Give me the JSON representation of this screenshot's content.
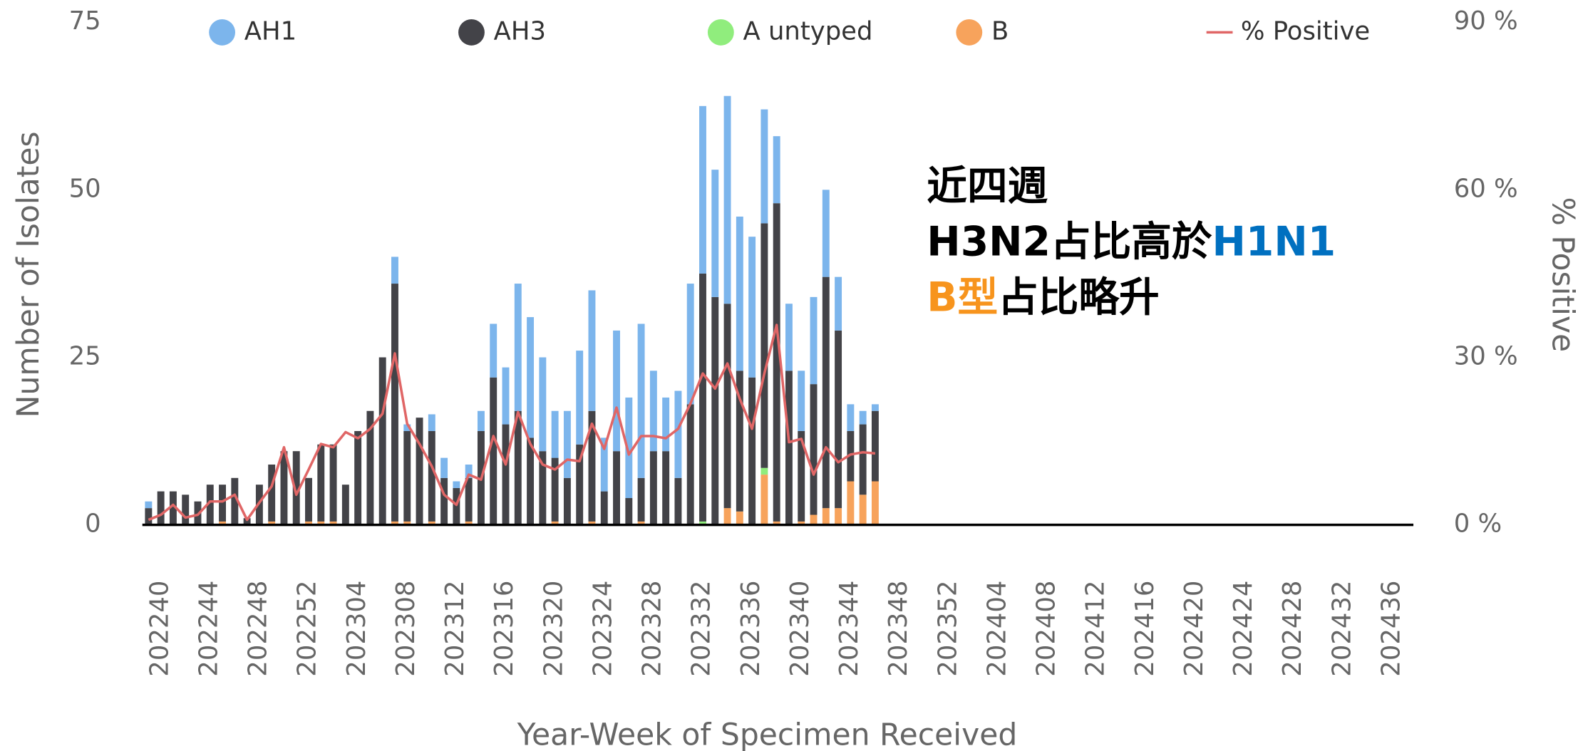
{
  "chart_data": {
    "type": "bar",
    "stacked": true,
    "legend_position": "top",
    "ylabel": "Number of Isolates",
    "y2label": "% Positive",
    "xlabel": "Year-Week of Specimen Received",
    "ylim": [
      0,
      75
    ],
    "yticks": [
      0,
      25,
      50,
      75
    ],
    "y2lim": [
      0,
      90
    ],
    "y2ticks": [
      {
        "value": 0,
        "label": "0 %"
      },
      {
        "value": 30,
        "label": "30 %"
      },
      {
        "value": 60,
        "label": "60 %"
      },
      {
        "value": 90,
        "label": "90 %"
      }
    ],
    "annotation": [
      [
        {
          "text": "近四週",
          "color": "#000000"
        }
      ],
      [
        {
          "text": "H3N2占比高於",
          "color": "#000000"
        },
        {
          "text": "H1N1",
          "color": "#0070c0"
        }
      ],
      [
        {
          "text": "B型",
          "color": "#f7941d"
        },
        {
          "text": "占比略升",
          "color": "#000000"
        }
      ]
    ],
    "categories": [
      "202240",
      null,
      null,
      null,
      "202244",
      null,
      null,
      null,
      "202248",
      null,
      null,
      null,
      "202252",
      null,
      null,
      null,
      "202304",
      null,
      null,
      null,
      "202308",
      null,
      null,
      null,
      "202312",
      null,
      null,
      null,
      "202316",
      null,
      null,
      null,
      "202320",
      null,
      null,
      null,
      "202324",
      null,
      null,
      null,
      "202328",
      null,
      null,
      null,
      "202332",
      null,
      null,
      null,
      "202336",
      null,
      null,
      null,
      "202340",
      null,
      null,
      null,
      "202344",
      null,
      null,
      null,
      "202348",
      null,
      null,
      null,
      "202352",
      null,
      null,
      null,
      "202404",
      null,
      null,
      null,
      "202408",
      null,
      null,
      null,
      "202412",
      null,
      null,
      null,
      "202416",
      null,
      null,
      null,
      "202420",
      null,
      null,
      null,
      "202424",
      null,
      null,
      null,
      "202428",
      null,
      null,
      null,
      "202432",
      null,
      null,
      null,
      "202436",
      null,
      null,
      null
    ],
    "series": [
      {
        "name": "AH1",
        "color": "#7cb5ec",
        "values": [
          1,
          0,
          0,
          0,
          0,
          0,
          0,
          0,
          0,
          0,
          0,
          0,
          0,
          0,
          0,
          0,
          0,
          0,
          0,
          0,
          4,
          1,
          0,
          2.5,
          3,
          1,
          2,
          3,
          8,
          8.5,
          19,
          18,
          14,
          7,
          10,
          14,
          18,
          8,
          18,
          15,
          23,
          12,
          8,
          13,
          18,
          25,
          19,
          31,
          23,
          21,
          17,
          10,
          10,
          9,
          13,
          13,
          8,
          4,
          2,
          1,
          null,
          null,
          null,
          null,
          null,
          null,
          null,
          null,
          null,
          null,
          null,
          null,
          null,
          null,
          null,
          null,
          null,
          null,
          null,
          null,
          null,
          null,
          null,
          null,
          null,
          null,
          null,
          null,
          null,
          null,
          null,
          null,
          null,
          null,
          null,
          null,
          null,
          null,
          null,
          null,
          null,
          null,
          null,
          null
        ]
      },
      {
        "name": "AH3",
        "color": "#434348",
        "values": [
          2.5,
          5,
          5,
          4.5,
          3.5,
          6,
          5.5,
          7,
          1,
          6,
          8.5,
          11,
          11,
          6.5,
          11.5,
          11.5,
          6,
          14,
          17,
          25,
          35.5,
          13.5,
          16,
          13.5,
          7,
          5.5,
          6.5,
          14,
          22,
          15,
          17,
          13,
          11,
          9.5,
          7,
          12,
          16.5,
          5,
          11,
          4,
          6.5,
          11,
          11,
          7,
          18,
          37,
          34,
          30.5,
          21,
          22,
          36.5,
          47.5,
          23,
          13.5,
          19.5,
          34.5,
          26.5,
          7.5,
          10.5,
          10.5,
          null,
          null,
          null,
          null,
          null,
          null,
          null,
          null,
          null,
          null,
          null,
          null,
          null,
          null,
          null,
          null,
          null,
          null,
          null,
          null,
          null,
          null,
          null,
          null,
          null,
          null,
          null,
          null,
          null,
          null,
          null,
          null,
          null,
          null,
          null,
          null,
          null,
          null,
          null,
          null,
          null,
          null,
          null,
          null
        ]
      },
      {
        "name": "A untyped",
        "color": "#90ed7d",
        "values": [
          0,
          0,
          0,
          0,
          0,
          0,
          0,
          0,
          0,
          0,
          0,
          0,
          0,
          0,
          0,
          0,
          0,
          0,
          0,
          0,
          0,
          0,
          0,
          0,
          0,
          0,
          0,
          0,
          0,
          0,
          0,
          0,
          0,
          0,
          0,
          0,
          0,
          0,
          0,
          0,
          0,
          0,
          0,
          0,
          0,
          0.5,
          0,
          0,
          0,
          0,
          1,
          0,
          0,
          0,
          0,
          0,
          0,
          0,
          0,
          0,
          null,
          null,
          null,
          null,
          null,
          null,
          null,
          null,
          null,
          null,
          null,
          null,
          null,
          null,
          null,
          null,
          null,
          null,
          null,
          null,
          null,
          null,
          null,
          null,
          null,
          null,
          null,
          null,
          null,
          null,
          null,
          null,
          null,
          null,
          null,
          null,
          null,
          null,
          null,
          null,
          null,
          null,
          null,
          null
        ]
      },
      {
        "name": "B",
        "color": "#f7a35c",
        "values": [
          0,
          0,
          0,
          0,
          0,
          0,
          0.5,
          0,
          0,
          0,
          0.5,
          0,
          0,
          0.5,
          0.5,
          0.5,
          0,
          0,
          0,
          0,
          0.5,
          0.5,
          0,
          0.5,
          0,
          0,
          0.5,
          0,
          0,
          0,
          0,
          0,
          0,
          0.5,
          0,
          0,
          0.5,
          0,
          0,
          0,
          0.5,
          0,
          0,
          0,
          0,
          0,
          0,
          2.5,
          2,
          0,
          7.5,
          0.5,
          0,
          0.5,
          1.5,
          2.5,
          2.5,
          6.5,
          4.5,
          6.5,
          null,
          null,
          null,
          null,
          null,
          null,
          null,
          null,
          null,
          null,
          null,
          null,
          null,
          null,
          null,
          null,
          null,
          null,
          null,
          null,
          null,
          null,
          null,
          null,
          null,
          null,
          null,
          null,
          null,
          null,
          null,
          null,
          null,
          null,
          null,
          null,
          null,
          null,
          null,
          null,
          null,
          null,
          null,
          null
        ]
      },
      {
        "name": "% Positive",
        "type": "line",
        "axis": "y2",
        "color": "#e06666",
        "values": [
          0.9,
          1.8,
          3.6,
          1.3,
          1.8,
          4.2,
          4.2,
          5.4,
          0.9,
          4.0,
          6.9,
          13.9,
          5.4,
          9.9,
          14.5,
          13.9,
          16.6,
          15.5,
          17.2,
          19.9,
          30.7,
          18.1,
          14.5,
          10.5,
          5.4,
          3.6,
          9.0,
          8.1,
          15.9,
          10.8,
          20.2,
          14.5,
          10.8,
          9.9,
          11.7,
          11.4,
          18.1,
          13.6,
          21,
          12.6,
          15.9,
          15.9,
          15.5,
          17.2,
          21.7,
          27.1,
          24.4,
          28.9,
          22.6,
          17.2,
          27.1,
          35.8,
          14.8,
          15.4,
          9.0,
          13.9,
          11.2,
          12.6,
          13,
          12.8,
          null,
          null,
          null,
          null,
          null,
          null,
          null,
          null,
          null,
          null,
          null,
          null,
          null,
          null,
          null,
          null,
          null,
          null,
          null,
          null,
          null,
          null,
          null,
          null,
          null,
          null,
          null,
          null,
          null,
          null,
          null,
          null,
          null,
          null,
          null,
          null,
          null,
          null,
          null,
          null,
          null,
          null,
          null,
          null
        ]
      }
    ]
  }
}
